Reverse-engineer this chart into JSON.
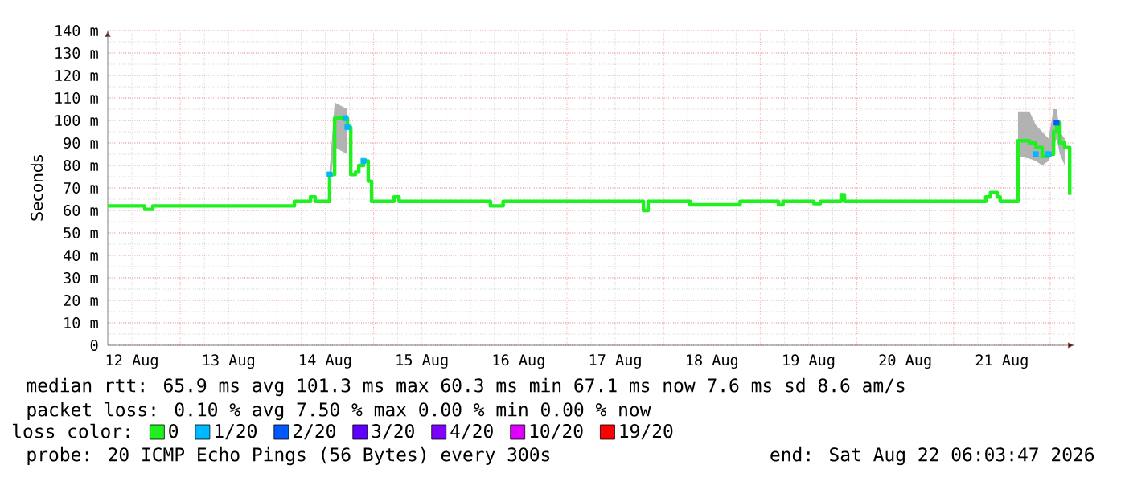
{
  "chart_data": {
    "type": "step",
    "ylabel": "Seconds",
    "x": [
      "2026-08-12T06:00",
      "2026-08-12T15:10",
      "2026-08-12T17:10",
      "2026-08-14T04:20",
      "2026-08-14T08:20",
      "2026-08-14T09:30",
      "2026-08-14T13:05",
      "2026-08-14T14:20",
      "2026-08-14T17:30",
      "2026-08-14T18:20",
      "2026-08-14T19:30",
      "2026-08-14T20:20",
      "2026-08-14T21:30",
      "2026-08-14T22:40",
      "2026-08-14T23:30",
      "2026-08-15T05:05",
      "2026-08-15T06:20",
      "2026-08-16T05:00",
      "2026-08-16T08:10",
      "2026-08-17T19:00",
      "2026-08-17T20:10",
      "2026-08-18T06:35",
      "2026-08-18T19:00",
      "2026-08-19T04:30",
      "2026-08-19T05:40",
      "2026-08-19T13:20",
      "2026-08-19T14:55",
      "2026-08-19T20:05",
      "2026-08-19T20:55",
      "2026-08-21T08:00",
      "2026-08-21T09:10",
      "2026-08-21T10:50",
      "2026-08-21T11:35",
      "2026-08-21T16:00",
      "2026-08-21T18:50",
      "2026-08-21T20:25",
      "2026-08-21T22:00",
      "2026-08-21T23:35",
      "2026-08-22T00:50",
      "2026-08-22T01:35",
      "2026-08-22T02:25",
      "2026-08-22T03:35",
      "2026-08-22T04:50"
    ],
    "series": [
      {
        "name": "0",
        "color": "#20f020",
        "values": [
          62,
          60.5,
          62,
          64,
          66,
          64,
          76,
          101,
          97,
          76,
          77,
          80,
          82,
          73,
          64,
          66,
          64,
          62,
          64,
          60,
          64,
          62.5,
          64,
          62.5,
          64,
          63,
          64,
          67,
          64,
          66,
          68,
          66,
          64,
          91,
          90,
          88,
          84,
          85,
          95,
          99,
          90,
          88,
          67
        ],
        "lower": [
          null,
          null,
          null,
          null,
          null,
          null,
          70,
          88,
          85,
          null,
          null,
          null,
          null,
          null,
          null,
          null,
          null,
          null,
          null,
          null,
          null,
          null,
          null,
          null,
          null,
          null,
          null,
          null,
          null,
          null,
          null,
          null,
          null,
          84,
          83,
          82,
          80,
          82,
          88,
          92,
          85,
          80,
          null
        ],
        "marker": "none",
        "upper": [
          null,
          null,
          null,
          null,
          null,
          null,
          78,
          108,
          105,
          null,
          null,
          null,
          null,
          null,
          null,
          null,
          null,
          null,
          null,
          null,
          null,
          null,
          null,
          null,
          null,
          null,
          null,
          null,
          null,
          null,
          null,
          null,
          null,
          104,
          104,
          98,
          95,
          92,
          105,
          105,
          95,
          92,
          null
        ]
      },
      {
        "name": "1/20",
        "type": "scatter",
        "color": "#00b8ff",
        "marker": "square",
        "x": [
          "2026-08-14T13:05",
          "2026-08-14T17:00",
          "2026-08-14T17:30",
          "2026-08-14T21:30",
          "2026-08-21T20:25",
          "2026-08-21T23:35"
        ],
        "values": [
          76,
          101,
          97,
          82,
          85,
          85
        ]
      },
      {
        "name": "2/20",
        "type": "scatter",
        "color": "#0059ff",
        "marker": "square",
        "x": [
          "2026-08-22T01:35"
        ],
        "values": [
          99
        ]
      },
      {
        "name": "3/20",
        "type": "scatter",
        "color": "#5e00ff",
        "marker": "square",
        "values": [
          null,
          null,
          null,
          null,
          null,
          null,
          null,
          null,
          null,
          null,
          null,
          null,
          null,
          null,
          null,
          null,
          null,
          null,
          null,
          null,
          null,
          null,
          null,
          null,
          null,
          null,
          null,
          null,
          null,
          null,
          null,
          null,
          null,
          null,
          null,
          null,
          null,
          null,
          null,
          null,
          null,
          null,
          null
        ]
      },
      {
        "name": "4/20",
        "type": "scatter",
        "color": "#7e00ff",
        "marker": "square",
        "values": [
          null,
          null,
          null,
          null,
          null,
          null,
          null,
          null,
          null,
          null,
          null,
          null,
          null,
          null,
          null,
          null,
          null,
          null,
          null,
          null,
          null,
          null,
          null,
          null,
          null,
          null,
          null,
          null,
          null,
          null,
          null,
          null,
          null,
          null,
          null,
          null,
          null,
          null,
          null,
          null,
          null,
          null,
          null
        ]
      },
      {
        "name": "10/20",
        "type": "scatter",
        "color": "#dd00ff",
        "marker": "square",
        "values": [
          null,
          null,
          null,
          null,
          null,
          null,
          null,
          null,
          null,
          null,
          null,
          null,
          null,
          null,
          null,
          null,
          null,
          null,
          null,
          null,
          null,
          null,
          null,
          null,
          null,
          null,
          null,
          null,
          null,
          null,
          null,
          null,
          null,
          null,
          null,
          null,
          null,
          null,
          null,
          null,
          null,
          null,
          null
        ]
      },
      {
        "name": "19/20",
        "type": "scatter",
        "color": "#ff0000",
        "marker": "square",
        "values": [
          null,
          null,
          null,
          null,
          null,
          null,
          null,
          null,
          null,
          null,
          null,
          null,
          null,
          null,
          null,
          null,
          null,
          null,
          null,
          null,
          null,
          null,
          null,
          null,
          null,
          null,
          null,
          null,
          null,
          null,
          null,
          null,
          null,
          null,
          null,
          null,
          null,
          null,
          null,
          null,
          null,
          null,
          null
        ]
      }
    ],
    "legend_title": "loss color:",
    "legend": "bottom",
    "grid": true,
    "xlim": [
      "2026-08-12T06:00",
      "2026-08-22T06:00"
    ],
    "xticks": [
      {
        "value": "2026-08-12T12:00",
        "label": "12 Aug"
      },
      {
        "value": "2026-08-13T12:00",
        "label": "13 Aug"
      },
      {
        "value": "2026-08-14T12:00",
        "label": "14 Aug"
      },
      {
        "value": "2026-08-15T12:00",
        "label": "15 Aug"
      },
      {
        "value": "2026-08-16T12:00",
        "label": "16 Aug"
      },
      {
        "value": "2026-08-17T12:00",
        "label": "17 Aug"
      },
      {
        "value": "2026-08-18T12:00",
        "label": "18 Aug"
      },
      {
        "value": "2026-08-19T12:00",
        "label": "19 Aug"
      },
      {
        "value": "2026-08-20T12:00",
        "label": "20 Aug"
      },
      {
        "value": "2026-08-21T12:00",
        "label": "21 Aug"
      }
    ],
    "ylim": [
      0,
      140
    ],
    "yticks": [
      0,
      {
        "value": 10,
        "label": "10 m"
      },
      {
        "value": 20,
        "label": "20 m"
      },
      {
        "value": 30,
        "label": "30 m"
      },
      {
        "value": 40,
        "label": "40 m"
      },
      {
        "value": 50,
        "label": "50 m"
      },
      {
        "value": 60,
        "label": "60 m"
      },
      {
        "value": 70,
        "label": "70 m"
      },
      {
        "value": 80,
        "label": "80 m"
      },
      {
        "value": 90,
        "label": "90 m"
      },
      {
        "value": 100,
        "label": "100 m"
      },
      {
        "value": 110,
        "label": "110 m"
      },
      {
        "value": 120,
        "label": "120 m"
      },
      {
        "value": 130,
        "label": "130 m"
      },
      {
        "value": 140,
        "label": "140 m"
      }
    ],
    "annotations": [
      "median rtt:  65.9 ms avg  101.3 ms max  60.3 ms min  67.1 ms now  7.6 ms sd  8.6   am/s",
      "packet loss: 0.10 % avg  7.50 % max  0.00 % min  0.00 % now",
      "probe:       20 ICMP Echo Pings (56 Bytes) every 300s",
      "end: Sat Aug 22 06:03:47 2026"
    ]
  }
}
